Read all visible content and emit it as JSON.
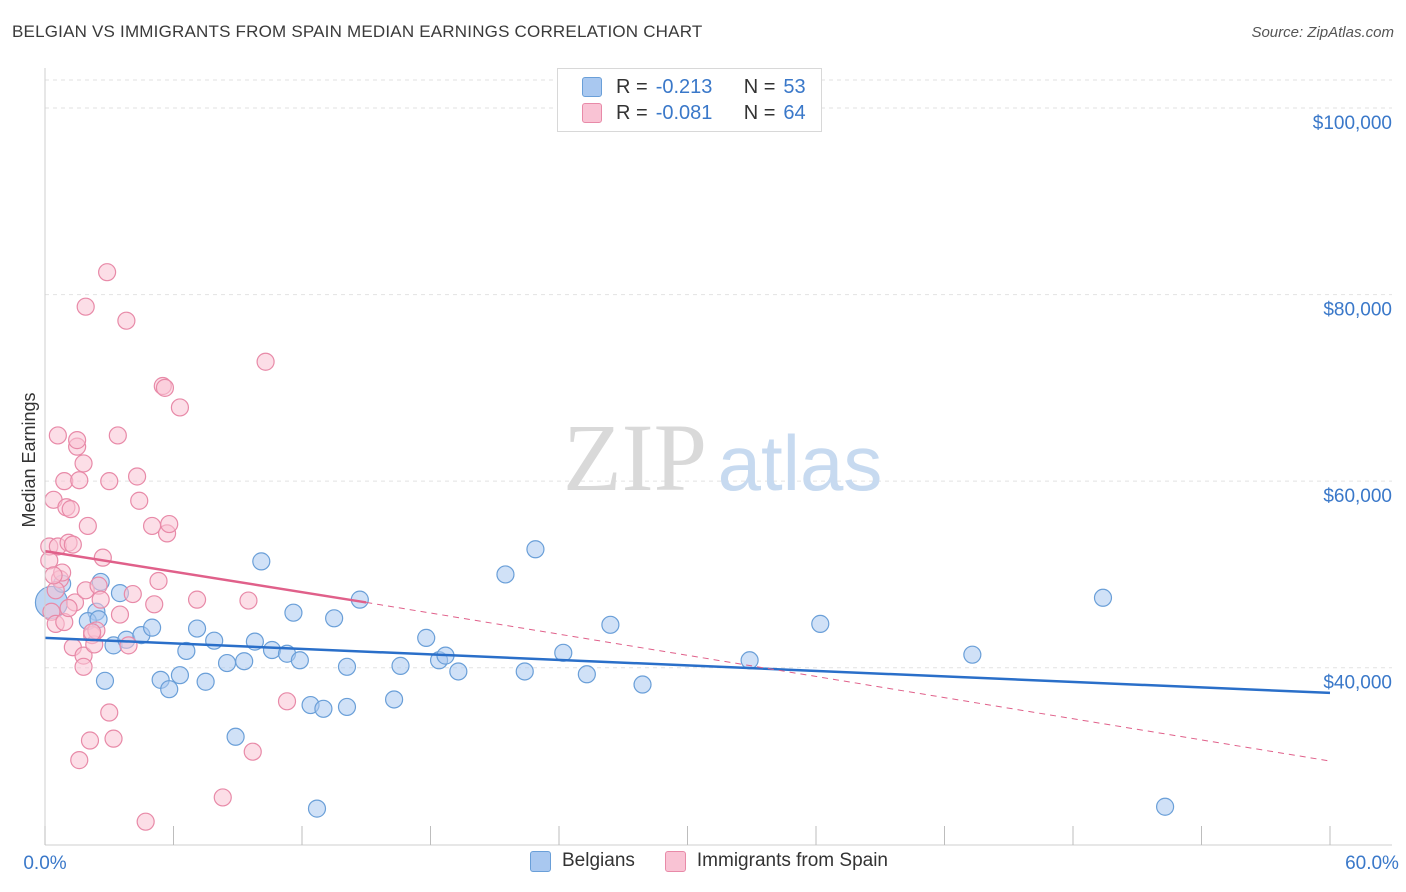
{
  "title": "BELGIAN VS IMMIGRANTS FROM SPAIN MEDIAN EARNINGS CORRELATION CHART",
  "source": "Source: ZipAtlas.com",
  "watermark": {
    "zip": "ZIP",
    "atlas": "atlas"
  },
  "legend": {
    "rows": [
      {
        "r_label": "R =",
        "r_value": "-0.213",
        "n_label": "N =",
        "n_value": "53",
        "color": "#a9c8f0",
        "border": "#6a9fd8"
      },
      {
        "r_label": "R =",
        "r_value": "-0.081",
        "n_label": "N =",
        "n_value": "64",
        "color": "#f9c3d4",
        "border": "#e88aa8"
      }
    ]
  },
  "bottom_legend": [
    {
      "label": "Belgians",
      "color": "#a9c8f0",
      "border": "#6a9fd8"
    },
    {
      "label": "Immigrants from Spain",
      "color": "#f9c3d4",
      "border": "#e88aa8"
    }
  ],
  "chart_data": {
    "type": "scatter",
    "title": "BELGIAN VS IMMIGRANTS FROM SPAIN MEDIAN EARNINGS CORRELATION CHART",
    "xlabel": "",
    "ylabel": "Median Earnings",
    "xlim": [
      0,
      60
    ],
    "ylim": [
      21000,
      103000
    ],
    "x_tick_labels": [
      "0.0%",
      "60.0%"
    ],
    "y_ticks": [
      40000,
      60000,
      80000,
      100000
    ],
    "y_tick_labels": [
      "$40,000",
      "$60,000",
      "$80,000",
      "$100,000"
    ],
    "series": [
      {
        "name": "Belgians",
        "color": "#6a9fd8",
        "fill": "#a9c8f0",
        "trend": {
          "x": [
            0,
            60
          ],
          "y": [
            43200,
            37300
          ],
          "color": "#2a6fc9"
        },
        "points": [
          [
            0.3,
            47000
          ],
          [
            0.8,
            49000
          ],
          [
            2.4,
            46000
          ],
          [
            2.0,
            45000
          ],
          [
            2.5,
            45200
          ],
          [
            2.6,
            49200
          ],
          [
            3.5,
            48000
          ],
          [
            2.8,
            38600
          ],
          [
            3.2,
            42400
          ],
          [
            3.8,
            43000
          ],
          [
            4.5,
            43500
          ],
          [
            5.0,
            44300
          ],
          [
            5.4,
            38700
          ],
          [
            5.8,
            37700
          ],
          [
            6.3,
            39200
          ],
          [
            6.6,
            41800
          ],
          [
            7.1,
            44200
          ],
          [
            7.5,
            38500
          ],
          [
            7.9,
            42900
          ],
          [
            8.5,
            40500
          ],
          [
            8.9,
            32600
          ],
          [
            9.3,
            40700
          ],
          [
            9.8,
            42800
          ],
          [
            10.1,
            51400
          ],
          [
            10.6,
            41900
          ],
          [
            11.3,
            41500
          ],
          [
            11.6,
            45900
          ],
          [
            11.9,
            40800
          ],
          [
            12.4,
            36000
          ],
          [
            13.0,
            35600
          ],
          [
            13.5,
            45300
          ],
          [
            14.1,
            35800
          ],
          [
            14.1,
            40100
          ],
          [
            14.7,
            47300
          ],
          [
            16.3,
            36600
          ],
          [
            16.6,
            40200
          ],
          [
            17.8,
            43200
          ],
          [
            18.4,
            40800
          ],
          [
            18.7,
            41300
          ],
          [
            19.3,
            39600
          ],
          [
            21.5,
            50000
          ],
          [
            22.4,
            39600
          ],
          [
            22.9,
            52700
          ],
          [
            24.2,
            41600
          ],
          [
            25.3,
            39300
          ],
          [
            26.4,
            44600
          ],
          [
            27.9,
            38200
          ],
          [
            32.9,
            40800
          ],
          [
            36.2,
            44700
          ],
          [
            43.3,
            41400
          ],
          [
            49.4,
            47500
          ],
          [
            52.3,
            25100
          ],
          [
            12.7,
            24900
          ]
        ]
      },
      {
        "name": "Immigrants from Spain",
        "color": "#e88aa8",
        "fill": "#f9c3d4",
        "trend": {
          "x": [
            0,
            15
          ],
          "y": [
            52500,
            47000
          ],
          "dashed_to": [
            60,
            30000
          ],
          "color": "#e0608a"
        },
        "points": [
          [
            0.2,
            53000
          ],
          [
            0.2,
            51500
          ],
          [
            0.3,
            46000
          ],
          [
            0.4,
            58000
          ],
          [
            0.5,
            44700
          ],
          [
            0.6,
            53000
          ],
          [
            0.6,
            64900
          ],
          [
            0.7,
            49500
          ],
          [
            0.8,
            50200
          ],
          [
            0.9,
            60000
          ],
          [
            1.0,
            57200
          ],
          [
            1.1,
            53400
          ],
          [
            1.2,
            57000
          ],
          [
            1.3,
            42200
          ],
          [
            1.3,
            53200
          ],
          [
            1.4,
            47000
          ],
          [
            1.5,
            63700
          ],
          [
            1.5,
            64400
          ],
          [
            1.6,
            60100
          ],
          [
            1.6,
            30100
          ],
          [
            1.8,
            41300
          ],
          [
            1.8,
            61900
          ],
          [
            1.8,
            40100
          ],
          [
            1.9,
            78700
          ],
          [
            1.9,
            48300
          ],
          [
            2.0,
            55200
          ],
          [
            2.1,
            32200
          ],
          [
            2.2,
            43500
          ],
          [
            2.3,
            42500
          ],
          [
            2.4,
            44000
          ],
          [
            2.5,
            48800
          ],
          [
            2.6,
            47300
          ],
          [
            2.7,
            51800
          ],
          [
            2.9,
            82400
          ],
          [
            3.0,
            60000
          ],
          [
            3.0,
            35200
          ],
          [
            3.2,
            32400
          ],
          [
            3.4,
            64900
          ],
          [
            3.5,
            45700
          ],
          [
            3.8,
            77200
          ],
          [
            3.9,
            42400
          ],
          [
            4.1,
            47900
          ],
          [
            4.3,
            60500
          ],
          [
            4.4,
            57900
          ],
          [
            4.7,
            23500
          ],
          [
            5.0,
            55200
          ],
          [
            5.1,
            46800
          ],
          [
            5.3,
            49300
          ],
          [
            5.5,
            70200
          ],
          [
            5.6,
            70000
          ],
          [
            5.7,
            54400
          ],
          [
            5.8,
            55400
          ],
          [
            6.3,
            67900
          ],
          [
            7.1,
            47300
          ],
          [
            8.3,
            26100
          ],
          [
            9.5,
            47200
          ],
          [
            9.7,
            31000
          ],
          [
            10.3,
            72800
          ],
          [
            11.3,
            36400
          ],
          [
            0.5,
            48300
          ],
          [
            2.2,
            43800
          ],
          [
            0.9,
            44900
          ],
          [
            1.1,
            46400
          ],
          [
            0.4,
            49900
          ]
        ]
      }
    ]
  }
}
